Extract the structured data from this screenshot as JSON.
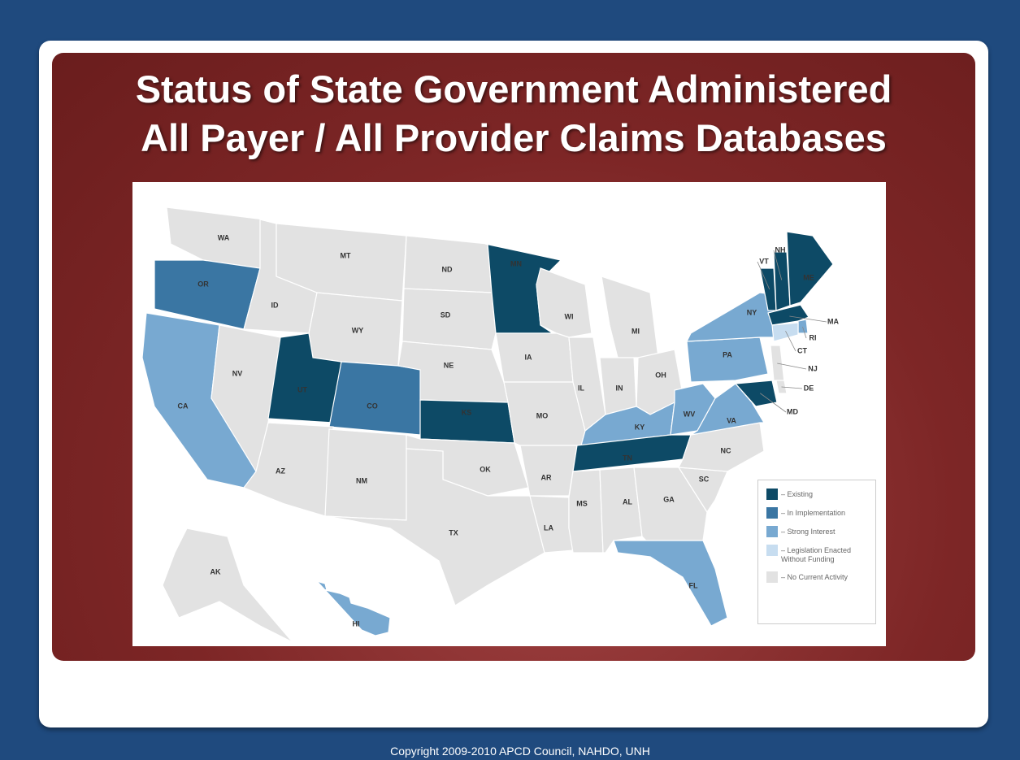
{
  "title": [
    "Status of State Government Administered",
    "All Payer / All Provider Claims Databases"
  ],
  "states": [
    {
      "label": "WA",
      "color": "#e2e2e2"
    },
    {
      "label": "OR",
      "color": "#3a76a3"
    },
    {
      "label": "CA",
      "color": "#78a9d1"
    },
    {
      "label": "NV",
      "color": "#e2e2e2"
    },
    {
      "label": "ID",
      "color": "#e2e2e2"
    },
    {
      "label": "MT",
      "color": "#e2e2e2"
    },
    {
      "label": "WY",
      "color": "#e2e2e2"
    },
    {
      "label": "UT",
      "color": "#0d4a66"
    },
    {
      "label": "CO",
      "color": "#3a76a3"
    },
    {
      "label": "AZ",
      "color": "#e2e2e2"
    },
    {
      "label": "NM",
      "color": "#e2e2e2"
    },
    {
      "label": "ND",
      "color": "#e2e2e2"
    },
    {
      "label": "SD",
      "color": "#e2e2e2"
    },
    {
      "label": "NE",
      "color": "#e2e2e2"
    },
    {
      "label": "KS",
      "color": "#0d4a66"
    },
    {
      "label": "OK",
      "color": "#e2e2e2"
    },
    {
      "label": "TX",
      "color": "#e2e2e2"
    },
    {
      "label": "MN",
      "color": "#0d4a66"
    },
    {
      "label": "IA",
      "color": "#e2e2e2"
    },
    {
      "label": "MO",
      "color": "#e2e2e2"
    },
    {
      "label": "AR",
      "color": "#e2e2e2"
    },
    {
      "label": "LA",
      "color": "#e2e2e2"
    },
    {
      "label": "WI",
      "color": "#e2e2e2"
    },
    {
      "label": "IL",
      "color": "#e2e2e2"
    },
    {
      "label": "MI",
      "color": "#e2e2e2"
    },
    {
      "label": "IN",
      "color": "#e2e2e2"
    },
    {
      "label": "OH",
      "color": "#e2e2e2"
    },
    {
      "label": "KY",
      "color": "#78a9d1"
    },
    {
      "label": "TN",
      "color": "#0d4a66"
    },
    {
      "label": "MS",
      "color": "#e2e2e2"
    },
    {
      "label": "AL",
      "color": "#e2e2e2"
    },
    {
      "label": "GA",
      "color": "#e2e2e2"
    },
    {
      "label": "FL",
      "color": "#78a9d1"
    },
    {
      "label": "SC",
      "color": "#e2e2e2"
    },
    {
      "label": "NC",
      "color": "#e2e2e2"
    },
    {
      "label": "WV",
      "color": "#78a9d1"
    },
    {
      "label": "VA",
      "color": "#78a9d1"
    },
    {
      "label": "PA",
      "color": "#78a9d1"
    },
    {
      "label": "NY",
      "color": "#78a9d1"
    },
    {
      "label": "VT",
      "color": "#0d4a66"
    },
    {
      "label": "NH",
      "color": "#0d4a66"
    },
    {
      "label": "ME",
      "color": "#0d4a66"
    },
    {
      "label": "MA",
      "color": "#0d4a66"
    },
    {
      "label": "RI",
      "color": "#78a9d1"
    },
    {
      "label": "CT",
      "color": "#c7ddf0"
    },
    {
      "label": "NJ",
      "color": "#e2e2e2"
    },
    {
      "label": "DE",
      "color": "#e2e2e2"
    },
    {
      "label": "MD",
      "color": "#0d4a66"
    },
    {
      "label": "AK",
      "color": "#e2e2e2"
    },
    {
      "label": "HI",
      "color": "#78a9d1"
    }
  ],
  "legend": [
    {
      "label": "– Existing",
      "color": "#0d4a66"
    },
    {
      "label": "– In Implementation",
      "color": "#3a76a3"
    },
    {
      "label": "– Strong Interest",
      "color": "#78a9d1"
    },
    {
      "label": "– Legislation Enacted Without Funding",
      "color": "#c7ddf0"
    },
    {
      "label": "– No Current Activity",
      "color": "#e2e2e2"
    }
  ],
  "copyright": "Copyright 2009-2010 APCD Council, NAHDO, UNH"
}
